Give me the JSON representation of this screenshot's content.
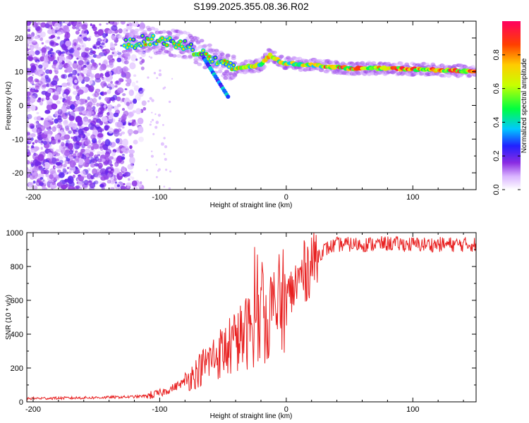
{
  "title": "S199.2025.355.08.36.R02",
  "chart_data": [
    {
      "type": "heatmap",
      "id": "spectrogram",
      "xlabel": "Height of straight line (km)",
      "ylabel": "Frequency (Hz)",
      "xlim": [
        -205,
        150
      ],
      "ylim": [
        -25,
        25
      ],
      "xticks": [
        -200,
        -100,
        0,
        100
      ],
      "yticks": [
        -20,
        -10,
        0,
        10,
        20
      ],
      "ridge": {
        "description_points_x": [
          -125,
          -110,
          -95,
          -80,
          -70,
          -60,
          -50,
          -40,
          -30,
          -20,
          -13,
          -5,
          0,
          20,
          50,
          80,
          120,
          150
        ],
        "description_points_y": [
          18,
          19.5,
          19,
          18,
          16,
          14,
          12,
          11,
          11.5,
          12,
          15,
          13,
          12.5,
          12,
          11,
          11,
          10.5,
          10
        ]
      },
      "colorbar": {
        "label": "Normalized spectral amplitude",
        "ticks": [
          "0.0",
          "0.2",
          "0.4",
          "0.6",
          "0.8"
        ],
        "tick_values": [
          0.0,
          0.2,
          0.4,
          0.6,
          0.8
        ],
        "range": [
          0,
          1
        ]
      }
    },
    {
      "type": "line",
      "id": "snr",
      "xlabel": "Height of straight line (km)",
      "ylabel": "SNR (10 * v/v)",
      "xlim": [
        -205,
        150
      ],
      "ylim": [
        0,
        1000
      ],
      "xticks": [
        -200,
        -100,
        0,
        100
      ],
      "yticks": [
        0,
        200,
        400,
        600,
        800,
        1000
      ],
      "series": [
        {
          "name": "SNR",
          "color": "#e82020",
          "x": [
            -205,
            -180,
            -150,
            -120,
            -110,
            -100,
            -90,
            -80,
            -70,
            -60,
            -50,
            -40,
            -30,
            -20,
            -10,
            0,
            10,
            20,
            30,
            40,
            60,
            80,
            100,
            120,
            150
          ],
          "y": [
            20,
            22,
            25,
            30,
            35,
            50,
            80,
            120,
            180,
            250,
            300,
            350,
            420,
            480,
            540,
            600,
            720,
            830,
            900,
            930,
            930,
            935,
            930,
            930,
            930
          ]
        }
      ]
    }
  ]
}
